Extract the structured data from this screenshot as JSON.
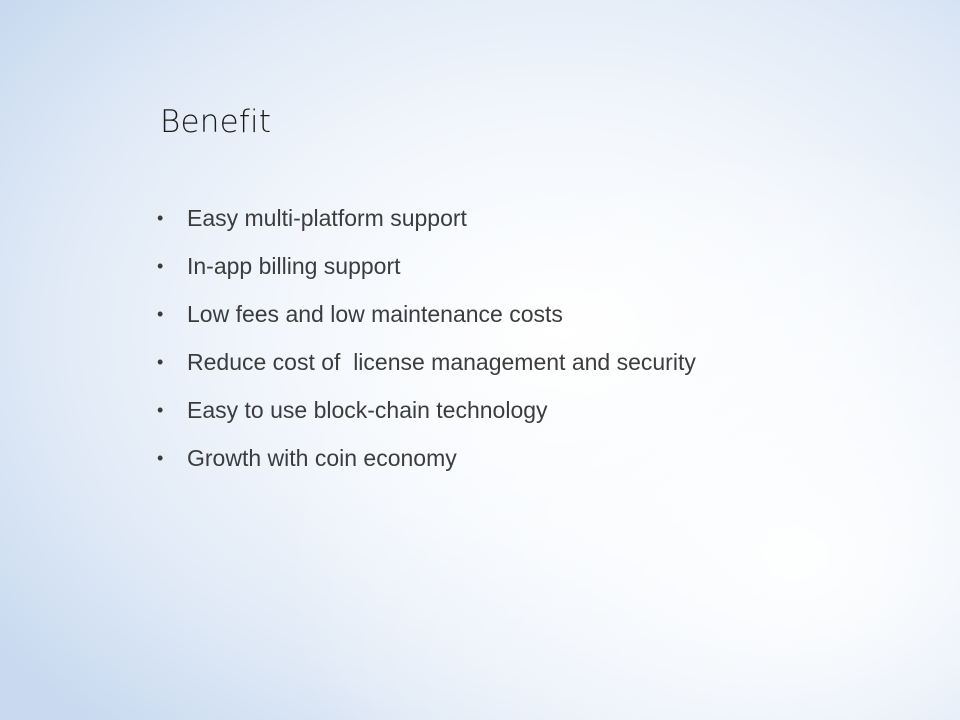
{
  "slide": {
    "title": "Benefit",
    "bullets": [
      "Easy multi-platform support",
      "In-app billing support",
      "Low fees and low maintenance costs",
      "Reduce cost of  license management and security",
      "Easy to use block-chain technology",
      "Growth with coin economy"
    ],
    "bullet_glyph": "•"
  }
}
